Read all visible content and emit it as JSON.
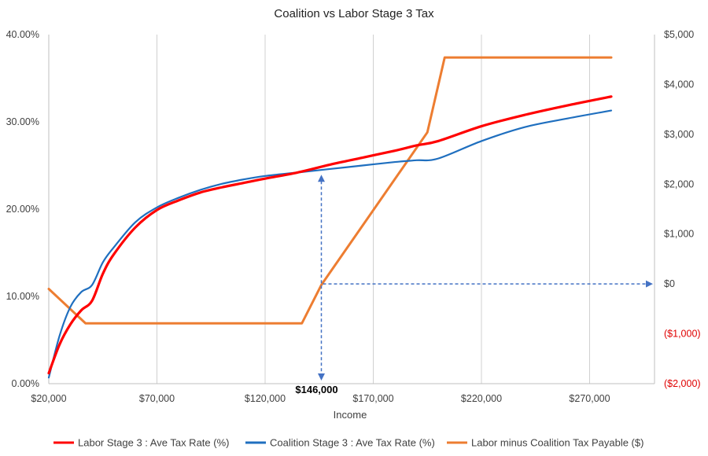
{
  "chart_data": {
    "type": "line",
    "title": "Coalition vs Labor Stage 3 Tax",
    "xlabel": "Income",
    "xlim": [
      20000,
      300000
    ],
    "x_ticks": [
      20000,
      70000,
      120000,
      170000,
      220000,
      270000
    ],
    "x_tick_labels": [
      "$20,000",
      "$70,000",
      "$120,000",
      "$170,000",
      "$220,000",
      "$270,000"
    ],
    "y_left_lim": [
      0,
      40
    ],
    "y_left_ticks": [
      0,
      10,
      20,
      30,
      40
    ],
    "y_left_tick_labels": [
      "0.00%",
      "10.00%",
      "20.00%",
      "30.00%",
      "40.00%"
    ],
    "y_right_lim": [
      -2000,
      5000
    ],
    "y_right_ticks": [
      -2000,
      -1000,
      0,
      1000,
      2000,
      3000,
      4000,
      5000
    ],
    "y_right_tick_labels": [
      "($2,000)",
      "($1,000)",
      "$0",
      "$1,000",
      "$2,000",
      "$3,000",
      "$4,000",
      "$5,000"
    ],
    "grid": "vertical",
    "legend_position": "bottom",
    "series": [
      {
        "name": "Labor Stage 3 : Ave Tax Rate (%)",
        "axis": "left",
        "color": "#ff0000",
        "x": [
          20000,
          25000,
          30000,
          35000,
          40000,
          45000,
          50000,
          60000,
          70000,
          80000,
          90000,
          100000,
          110000,
          120000,
          135000,
          150000,
          165000,
          180000,
          190000,
          200000,
          220000,
          240000,
          260000,
          280000
        ],
        "y": [
          1.2,
          4.5,
          6.8,
          8.4,
          9.5,
          12.6,
          14.8,
          17.9,
          19.9,
          21.0,
          21.9,
          22.5,
          23.0,
          23.5,
          24.2,
          25.1,
          25.9,
          26.7,
          27.3,
          27.8,
          29.5,
          30.8,
          31.9,
          32.9
        ]
      },
      {
        "name": "Coalition Stage 3 : Ave Tax Rate (%)",
        "axis": "left",
        "color": "#1f6fbf",
        "x": [
          20000,
          25000,
          30000,
          35000,
          40000,
          45000,
          50000,
          60000,
          70000,
          80000,
          90000,
          100000,
          110000,
          120000,
          135000,
          150000,
          165000,
          180000,
          190000,
          200000,
          220000,
          240000,
          260000,
          280000
        ],
        "y": [
          0.7,
          5.5,
          8.8,
          10.5,
          11.3,
          13.9,
          15.6,
          18.5,
          20.2,
          21.3,
          22.2,
          22.9,
          23.4,
          23.8,
          24.2,
          24.6,
          25.0,
          25.4,
          25.6,
          25.8,
          27.8,
          29.4,
          30.4,
          31.3
        ]
      },
      {
        "name": "Labor minus Coalition Tax Payable ($)",
        "axis": "right",
        "color": "#ed7d31",
        "x": [
          20000,
          37000,
          45000,
          137000,
          146000,
          195000,
          203000,
          280000
        ],
        "y": [
          -100,
          -790,
          -790,
          -790,
          -20,
          3040,
          4540,
          4540
        ]
      }
    ],
    "annotations": [
      {
        "label": "$146,000",
        "x": 146000,
        "y_left": 24.3,
        "y_right": 0
      }
    ]
  }
}
